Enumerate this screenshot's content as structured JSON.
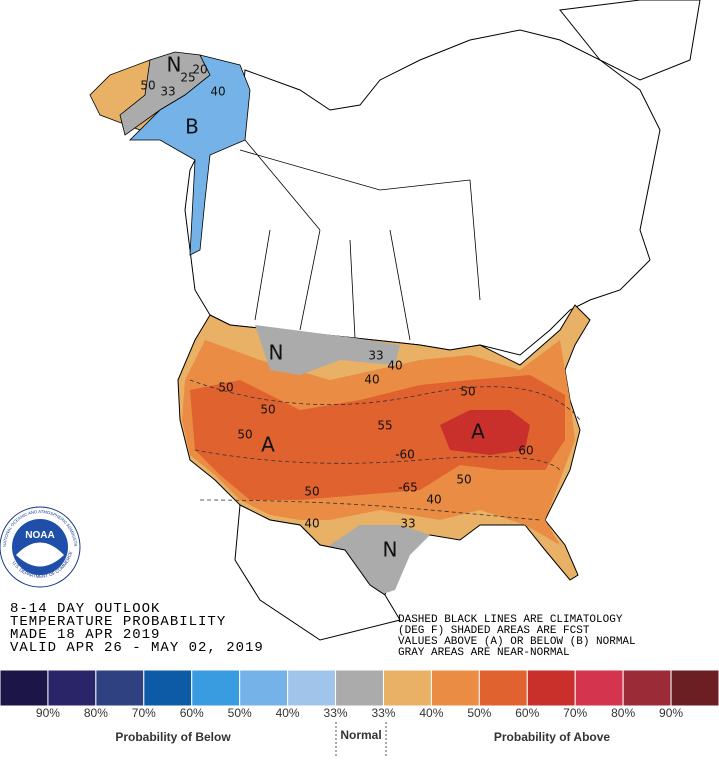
{
  "map": {
    "labels": [
      "N",
      "20",
      "25",
      "33",
      "40",
      "B",
      "N",
      "33",
      "40",
      "50",
      "50",
      "50",
      "A",
      "50",
      "55",
      "-60",
      "A",
      "60",
      "50",
      "-65",
      "40",
      "50",
      "40",
      "33",
      "N",
      "50",
      "40"
    ]
  },
  "outlook": {
    "lines": [
      "8-14 DAY OUTLOOK",
      "TEMPERATURE PROBABILITY",
      "MADE  18 APR 2019",
      "VALID  APR 26 - MAY 02, 2019"
    ]
  },
  "notes": {
    "lines": [
      "DASHED BLACK LINES ARE CLIMATOLOGY",
      "(DEG F) SHADED AREAS ARE FCST",
      "VALUES ABOVE (A) OR BELOW (B) NORMAL",
      "GRAY AREAS ARE NEAR-NORMAL"
    ]
  },
  "logo": {
    "name": "NOAA",
    "ring_top": "NATIONAL OCEANIC AND ATMOSPHERIC ADMINISTRATION",
    "ring_bottom": "U.S. DEPARTMENT OF COMMERCE"
  },
  "legend": {
    "colors": [
      "#1c1648",
      "#2a2468",
      "#2f4180",
      "#0d5aa6",
      "#3a9ce0",
      "#74b2e8",
      "#a0c4ea",
      "#ababab",
      "#e8b166",
      "#ea8c44",
      "#e0622f",
      "#c92f2b",
      "#d5344e",
      "#9b2b37",
      "#6b1f23"
    ],
    "labels": [
      "90%",
      "80%",
      "70%",
      "60%",
      "50%",
      "40%",
      "33%",
      "33%",
      "40%",
      "50%",
      "60%",
      "70%",
      "80%",
      "90%"
    ],
    "below": "Probability of Below",
    "normal": "Normal",
    "above": "Probability of Above"
  }
}
